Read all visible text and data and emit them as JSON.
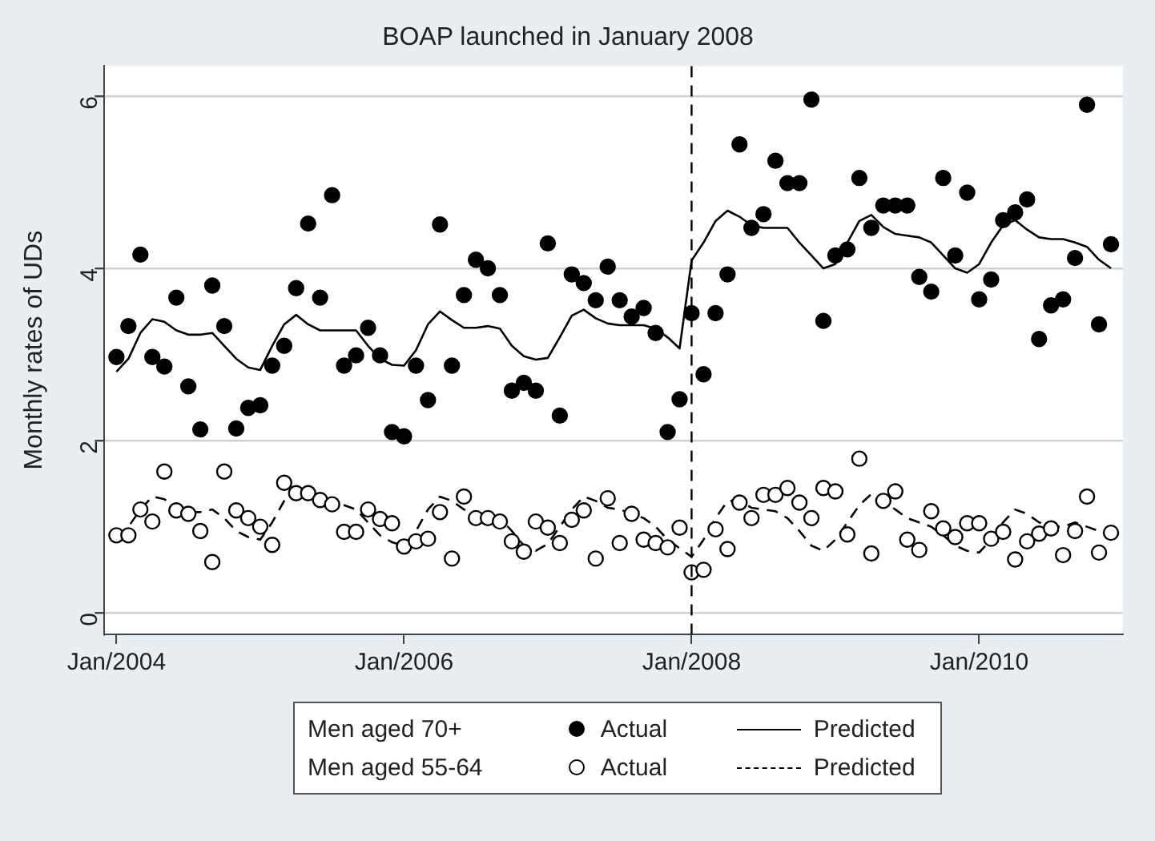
{
  "chart_data": {
    "type": "scatter",
    "title": "BOAP launched in January 2008",
    "ylabel": "Monthly rates of UDs",
    "x": [
      "2004-01",
      "2004-02",
      "2004-03",
      "2004-04",
      "2004-05",
      "2004-06",
      "2004-07",
      "2004-08",
      "2004-09",
      "2004-10",
      "2004-11",
      "2004-12",
      "2005-01",
      "2005-02",
      "2005-03",
      "2005-04",
      "2005-05",
      "2005-06",
      "2005-07",
      "2005-08",
      "2005-09",
      "2005-10",
      "2005-11",
      "2005-12",
      "2006-01",
      "2006-02",
      "2006-03",
      "2006-04",
      "2006-05",
      "2006-06",
      "2006-07",
      "2006-08",
      "2006-09",
      "2006-10",
      "2006-11",
      "2006-12",
      "2007-01",
      "2007-02",
      "2007-03",
      "2007-04",
      "2007-05",
      "2007-06",
      "2007-07",
      "2007-08",
      "2007-09",
      "2007-10",
      "2007-11",
      "2007-12",
      "2008-01",
      "2008-02",
      "2008-03",
      "2008-04",
      "2008-05",
      "2008-06",
      "2008-07",
      "2008-08",
      "2008-09",
      "2008-10",
      "2008-11",
      "2008-12",
      "2009-01",
      "2009-02",
      "2009-03",
      "2009-04",
      "2009-05",
      "2009-06",
      "2009-07",
      "2009-08",
      "2009-09",
      "2009-10",
      "2009-11",
      "2009-12",
      "2010-01",
      "2010-02",
      "2010-03",
      "2010-04",
      "2010-05",
      "2010-06",
      "2010-07",
      "2010-08",
      "2010-09",
      "2010-10",
      "2010-11",
      "2010-12"
    ],
    "series": [
      {
        "name": "Actual",
        "marker": "circle",
        "color": "#000000",
        "values": [
          2.97,
          3.33,
          4.16,
          2.97,
          2.86,
          3.66,
          2.63,
          2.13,
          3.8,
          3.33,
          2.14,
          2.38,
          2.41,
          2.87,
          3.1,
          3.77,
          4.52,
          3.66,
          4.85,
          2.87,
          2.99,
          3.31,
          2.99,
          2.1,
          2.05,
          2.87,
          2.47,
          4.51,
          2.87,
          3.69,
          4.1,
          4.0,
          3.69,
          2.58,
          2.67,
          2.58,
          4.29,
          2.29,
          3.93,
          3.83,
          3.63,
          4.02,
          3.63,
          3.44,
          3.54,
          3.25,
          2.1,
          2.48,
          3.48,
          2.77,
          3.48,
          3.93,
          5.44,
          4.47,
          4.63,
          5.25,
          4.99,
          4.99,
          5.96,
          3.39,
          4.15,
          4.22,
          5.05,
          4.47,
          4.73,
          4.73,
          4.73,
          3.9,
          3.73,
          5.05,
          4.15,
          4.88,
          3.64,
          3.87,
          4.56,
          4.65,
          4.8,
          3.18,
          3.57,
          3.64,
          4.12,
          5.9,
          3.35,
          4.28
        ]
      },
      {
        "name": "Predicted",
        "type": "line",
        "marker": "none",
        "line_style": "solid",
        "color": "#000000",
        "values": [
          2.8,
          2.95,
          3.25,
          3.41,
          3.38,
          3.28,
          3.23,
          3.23,
          3.25,
          3.1,
          2.95,
          2.85,
          2.82,
          3.1,
          3.35,
          3.46,
          3.35,
          3.28,
          3.28,
          3.28,
          3.28,
          3.1,
          2.95,
          2.88,
          2.87,
          3.05,
          3.35,
          3.5,
          3.4,
          3.31,
          3.31,
          3.33,
          3.3,
          3.1,
          2.98,
          2.94,
          2.96,
          3.2,
          3.45,
          3.52,
          3.42,
          3.36,
          3.34,
          3.34,
          3.34,
          3.3,
          3.2,
          3.07,
          4.09,
          4.3,
          4.55,
          4.67,
          4.6,
          4.5,
          4.47,
          4.47,
          4.47,
          4.3,
          4.15,
          4.0,
          4.05,
          4.3,
          4.55,
          4.62,
          4.48,
          4.4,
          4.38,
          4.36,
          4.3,
          4.15,
          4.0,
          3.95,
          4.05,
          4.3,
          4.5,
          4.56,
          4.45,
          4.36,
          4.34,
          4.34,
          4.3,
          4.25,
          4.1,
          4.0
        ]
      },
      {
        "name": "Actual",
        "marker": "circle",
        "color": "#000000",
        "values": [
          0.9,
          0.9,
          1.2,
          1.06,
          1.64,
          1.19,
          1.15,
          0.95,
          0.59,
          1.64,
          1.19,
          1.1,
          1.0,
          0.79,
          1.51,
          1.39,
          1.39,
          1.31,
          1.26,
          0.94,
          0.94,
          1.2,
          1.09,
          1.04,
          0.77,
          0.83,
          0.86,
          1.17,
          0.63,
          1.35,
          1.1,
          1.1,
          1.06,
          0.83,
          0.71,
          1.06,
          0.99,
          0.81,
          1.08,
          1.19,
          0.63,
          1.33,
          0.81,
          1.15,
          0.85,
          0.81,
          0.76,
          0.99,
          0.47,
          0.5,
          0.97,
          0.74,
          1.28,
          1.1,
          1.37,
          1.37,
          1.45,
          1.28,
          1.1,
          1.45,
          1.41,
          0.91,
          1.79,
          0.69,
          1.3,
          1.41,
          0.85,
          0.73,
          1.18,
          0.98,
          0.88,
          1.04,
          1.04,
          0.86,
          0.94,
          0.62,
          0.83,
          0.92,
          0.98,
          0.67,
          0.95,
          1.35,
          0.7,
          0.93
        ]
      },
      {
        "name": "Predicted",
        "type": "line",
        "marker": "none",
        "line_style": "dashed",
        "color": "#000000",
        "values": [
          0.88,
          1.0,
          1.2,
          1.35,
          1.32,
          1.22,
          1.17,
          1.17,
          1.2,
          1.1,
          0.95,
          0.88,
          0.85,
          1.05,
          1.3,
          1.42,
          1.38,
          1.3,
          1.25,
          1.25,
          1.2,
          1.05,
          0.9,
          0.82,
          0.78,
          0.95,
          1.2,
          1.35,
          1.3,
          1.2,
          1.15,
          1.12,
          1.1,
          0.95,
          0.78,
          0.72,
          0.8,
          1.0,
          1.2,
          1.35,
          1.3,
          1.22,
          1.2,
          1.15,
          1.1,
          1.0,
          0.85,
          0.75,
          0.65,
          0.85,
          1.1,
          1.3,
          1.3,
          1.22,
          1.2,
          1.18,
          1.1,
          0.95,
          0.78,
          0.72,
          0.85,
          1.05,
          1.25,
          1.38,
          1.3,
          1.2,
          1.1,
          1.05,
          1.0,
          0.9,
          0.78,
          0.72,
          0.7,
          0.85,
          1.05,
          1.2,
          1.15,
          1.05,
          1.0,
          1.0,
          1.05,
          1.0,
          0.95,
          0.9
        ]
      }
    ],
    "xlim": [
      "2003-12",
      "2011-01"
    ],
    "xticks": [
      {
        "value": "2004-01",
        "label": "Jan/2004"
      },
      {
        "value": "2006-01",
        "label": "Jan/2006"
      },
      {
        "value": "2008-01",
        "label": "Jan/2008"
      },
      {
        "value": "2010-01",
        "label": "Jan/2010"
      }
    ],
    "ylim": [
      -0.25,
      6.35
    ],
    "yticks": [
      0,
      2,
      4,
      6
    ],
    "grid": "y",
    "legend": "bottom",
    "ref_lines": [
      {
        "axis": "x",
        "value": "2008-01",
        "line_style": "dashed",
        "color": "#000000"
      }
    ],
    "annotations": [
      "Men aged 70+",
      "Men aged 55-64"
    ]
  }
}
